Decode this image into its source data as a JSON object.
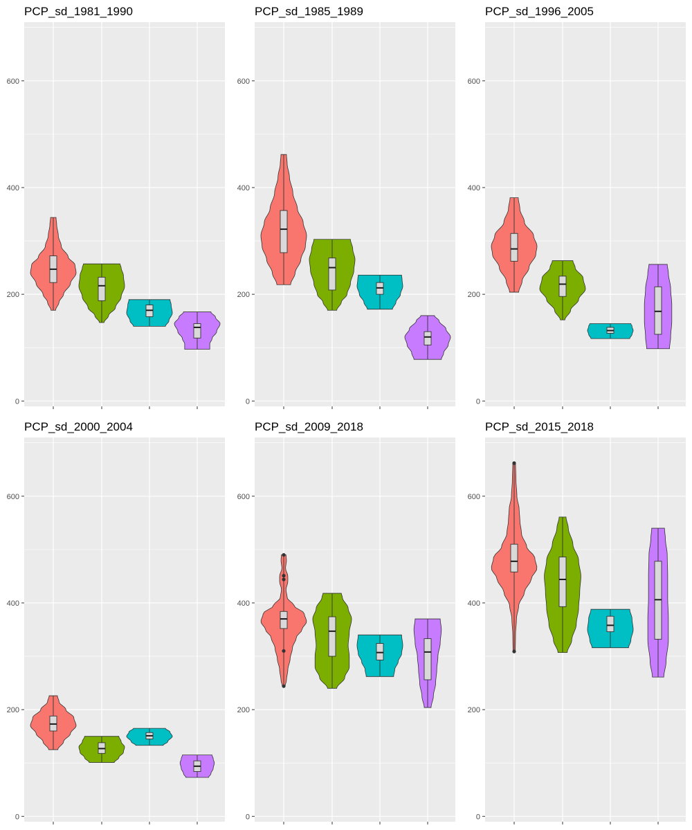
{
  "figure": {
    "background": "#ffffff",
    "panel_background": "#ebebeb",
    "grid_color": "#ffffff",
    "box_fill": "#d9d9d9",
    "outline_color": "#333333",
    "category_colors": [
      "#f8766d",
      "#7cae00",
      "#00bfc4",
      "#c77cff"
    ]
  },
  "chart_data": [
    {
      "type": "violin",
      "title": "PCP_sd_1981_1990",
      "xlabel": "",
      "ylabel": "",
      "ylim": [
        -10,
        710
      ],
      "yticks": [
        0,
        200,
        400,
        600
      ],
      "grid": true,
      "series": [
        {
          "min": 170,
          "q1": 222,
          "median": 247,
          "q3": 272,
          "max": 344,
          "outliers": [],
          "density": [
            [
              170,
              0.1
            ],
            [
              185,
              0.25
            ],
            [
              200,
              0.45
            ],
            [
              220,
              0.75
            ],
            [
              240,
              1.0
            ],
            [
              255,
              0.95
            ],
            [
              270,
              0.65
            ],
            [
              290,
              0.35
            ],
            [
              310,
              0.22
            ],
            [
              330,
              0.15
            ],
            [
              344,
              0.12
            ]
          ]
        },
        {
          "min": 147,
          "q1": 188,
          "median": 216,
          "q3": 232,
          "max": 257,
          "outliers": [],
          "density": [
            [
              147,
              0.1
            ],
            [
              160,
              0.3
            ],
            [
              175,
              0.6
            ],
            [
              195,
              0.85
            ],
            [
              215,
              1.0
            ],
            [
              235,
              0.95
            ],
            [
              250,
              0.85
            ],
            [
              257,
              0.8
            ]
          ]
        },
        {
          "min": 140,
          "q1": 158,
          "median": 170,
          "q3": 180,
          "max": 190,
          "outliers": [],
          "density": [
            [
              140,
              0.7
            ],
            [
              150,
              0.85
            ],
            [
              165,
              1.0
            ],
            [
              180,
              0.95
            ],
            [
              190,
              0.9
            ]
          ]
        },
        {
          "min": 97,
          "q1": 118,
          "median": 138,
          "q3": 145,
          "max": 167,
          "outliers": [],
          "density": [
            [
              97,
              0.55
            ],
            [
              107,
              0.55
            ],
            [
              117,
              0.65
            ],
            [
              130,
              0.85
            ],
            [
              145,
              1.0
            ],
            [
              157,
              0.8
            ],
            [
              167,
              0.6
            ]
          ]
        }
      ]
    },
    {
      "type": "violin",
      "title": "PCP_sd_1985_1989",
      "xlabel": "",
      "ylabel": "",
      "ylim": [
        -10,
        710
      ],
      "yticks": [
        0,
        200,
        400,
        600
      ],
      "grid": true,
      "series": [
        {
          "min": 218,
          "q1": 278,
          "median": 322,
          "q3": 357,
          "max": 462,
          "outliers": [],
          "density": [
            [
              218,
              0.3
            ],
            [
              240,
              0.5
            ],
            [
              265,
              0.75
            ],
            [
              290,
              0.95
            ],
            [
              310,
              1.0
            ],
            [
              335,
              0.85
            ],
            [
              360,
              0.6
            ],
            [
              390,
              0.4
            ],
            [
              420,
              0.25
            ],
            [
              445,
              0.15
            ],
            [
              462,
              0.12
            ]
          ]
        },
        {
          "min": 170,
          "q1": 208,
          "median": 250,
          "q3": 268,
          "max": 303,
          "outliers": [],
          "density": [
            [
              170,
              0.2
            ],
            [
              185,
              0.4
            ],
            [
              200,
              0.65
            ],
            [
              220,
              0.8
            ],
            [
              245,
              0.95
            ],
            [
              265,
              1.0
            ],
            [
              285,
              0.9
            ],
            [
              303,
              0.8
            ]
          ]
        },
        {
          "min": 172,
          "q1": 200,
          "median": 212,
          "q3": 222,
          "max": 236,
          "outliers": [],
          "density": [
            [
              172,
              0.55
            ],
            [
              185,
              0.7
            ],
            [
              200,
              0.9
            ],
            [
              215,
              1.0
            ],
            [
              228,
              0.97
            ],
            [
              236,
              0.95
            ]
          ]
        },
        {
          "min": 78,
          "q1": 105,
          "median": 120,
          "q3": 130,
          "max": 160,
          "outliers": [],
          "density": [
            [
              78,
              0.6
            ],
            [
              90,
              0.7
            ],
            [
              105,
              0.9
            ],
            [
              120,
              1.0
            ],
            [
              135,
              0.8
            ],
            [
              150,
              0.5
            ],
            [
              160,
              0.3
            ]
          ]
        }
      ]
    },
    {
      "type": "violin",
      "title": "PCP_sd_1996_2005",
      "xlabel": "",
      "ylabel": "",
      "ylim": [
        -10,
        710
      ],
      "yticks": [
        0,
        200,
        400,
        600
      ],
      "grid": true,
      "series": [
        {
          "min": 204,
          "q1": 262,
          "median": 285,
          "q3": 314,
          "max": 381,
          "outliers": [],
          "density": [
            [
              204,
              0.2
            ],
            [
              225,
              0.35
            ],
            [
              250,
              0.65
            ],
            [
              275,
              0.95
            ],
            [
              290,
              1.0
            ],
            [
              310,
              0.85
            ],
            [
              335,
              0.45
            ],
            [
              360,
              0.25
            ],
            [
              381,
              0.18
            ]
          ]
        },
        {
          "min": 152,
          "q1": 196,
          "median": 219,
          "q3": 234,
          "max": 263,
          "outliers": [],
          "density": [
            [
              152,
              0.1
            ],
            [
              170,
              0.35
            ],
            [
              190,
              0.7
            ],
            [
              210,
              1.0
            ],
            [
              230,
              0.9
            ],
            [
              250,
              0.55
            ],
            [
              263,
              0.45
            ]
          ]
        },
        {
          "min": 117,
          "q1": 127,
          "median": 132,
          "q3": 138,
          "max": 145,
          "outliers": [],
          "density": [
            [
              117,
              0.85
            ],
            [
              125,
              0.95
            ],
            [
              132,
              1.0
            ],
            [
              140,
              0.95
            ],
            [
              145,
              0.9
            ]
          ]
        },
        {
          "min": 98,
          "q1": 125,
          "median": 168,
          "q3": 214,
          "max": 256,
          "outliers": [],
          "density": [
            [
              98,
              0.5
            ],
            [
              120,
              0.55
            ],
            [
              150,
              0.6
            ],
            [
              180,
              0.6
            ],
            [
              210,
              0.55
            ],
            [
              240,
              0.45
            ],
            [
              256,
              0.4
            ]
          ]
        }
      ]
    },
    {
      "type": "violin",
      "title": "PCP_sd_2000_2004",
      "xlabel": "",
      "ylabel": "",
      "ylim": [
        -10,
        710
      ],
      "yticks": [
        0,
        200,
        400,
        600
      ],
      "grid": true,
      "series": [
        {
          "min": 125,
          "q1": 160,
          "median": 173,
          "q3": 188,
          "max": 226,
          "outliers": [],
          "density": [
            [
              125,
              0.2
            ],
            [
              140,
              0.45
            ],
            [
              155,
              0.75
            ],
            [
              170,
              1.0
            ],
            [
              185,
              0.9
            ],
            [
              200,
              0.55
            ],
            [
              215,
              0.25
            ],
            [
              226,
              0.18
            ]
          ]
        },
        {
          "min": 101,
          "q1": 118,
          "median": 127,
          "q3": 138,
          "max": 150,
          "outliers": [],
          "density": [
            [
              101,
              0.55
            ],
            [
              110,
              0.75
            ],
            [
              120,
              0.95
            ],
            [
              130,
              1.0
            ],
            [
              140,
              0.85
            ],
            [
              150,
              0.75
            ]
          ]
        },
        {
          "min": 133,
          "q1": 145,
          "median": 151,
          "q3": 157,
          "max": 165,
          "outliers": [],
          "density": [
            [
              133,
              0.6
            ],
            [
              140,
              0.8
            ],
            [
              150,
              1.0
            ],
            [
              158,
              0.9
            ],
            [
              165,
              0.7
            ]
          ]
        },
        {
          "min": 73,
          "q1": 84,
          "median": 94,
          "q3": 104,
          "max": 115,
          "outliers": [],
          "density": [
            [
              73,
              0.5
            ],
            [
              80,
              0.6
            ],
            [
              90,
              0.7
            ],
            [
              100,
              0.75
            ],
            [
              108,
              0.7
            ],
            [
              115,
              0.65
            ]
          ]
        }
      ]
    },
    {
      "type": "violin",
      "title": "PCP_sd_2009_2018",
      "xlabel": "",
      "ylabel": "",
      "ylim": [
        -10,
        710
      ],
      "yticks": [
        0,
        200,
        400,
        600
      ],
      "grid": true,
      "series": [
        {
          "min": 244,
          "q1": 352,
          "median": 370,
          "q3": 384,
          "max": 490,
          "outliers": [
            490,
            451,
            444,
            310,
            244
          ],
          "density": [
            [
              244,
              0.06
            ],
            [
              255,
              0.12
            ],
            [
              275,
              0.18
            ],
            [
              295,
              0.28
            ],
            [
              315,
              0.38
            ],
            [
              335,
              0.55
            ],
            [
              350,
              0.8
            ],
            [
              365,
              1.0
            ],
            [
              380,
              0.9
            ],
            [
              395,
              0.45
            ],
            [
              410,
              0.15
            ],
            [
              425,
              0.1
            ],
            [
              440,
              0.18
            ],
            [
              450,
              0.18
            ],
            [
              465,
              0.08
            ],
            [
              480,
              0.12
            ],
            [
              490,
              0.1
            ]
          ]
        },
        {
          "min": 240,
          "q1": 300,
          "median": 347,
          "q3": 374,
          "max": 418,
          "outliers": [],
          "density": [
            [
              240,
              0.2
            ],
            [
              260,
              0.55
            ],
            [
              280,
              0.75
            ],
            [
              300,
              0.75
            ],
            [
              320,
              0.7
            ],
            [
              345,
              0.75
            ],
            [
              370,
              0.85
            ],
            [
              390,
              0.7
            ],
            [
              410,
              0.45
            ],
            [
              418,
              0.4
            ]
          ]
        },
        {
          "min": 262,
          "q1": 293,
          "median": 307,
          "q3": 324,
          "max": 340,
          "outliers": [],
          "density": [
            [
              262,
              0.6
            ],
            [
              275,
              0.65
            ],
            [
              290,
              0.8
            ],
            [
              305,
              0.95
            ],
            [
              320,
              1.0
            ],
            [
              340,
              0.95
            ]
          ]
        },
        {
          "min": 204,
          "q1": 256,
          "median": 308,
          "q3": 333,
          "max": 370,
          "outliers": [],
          "density": [
            [
              204,
              0.15
            ],
            [
              225,
              0.25
            ],
            [
              250,
              0.35
            ],
            [
              275,
              0.4
            ],
            [
              300,
              0.45
            ],
            [
              325,
              0.55
            ],
            [
              350,
              0.6
            ],
            [
              370,
              0.55
            ]
          ]
        }
      ]
    },
    {
      "type": "violin",
      "title": "PCP_sd_2015_2018",
      "xlabel": "",
      "ylabel": "",
      "ylim": [
        -10,
        710
      ],
      "yticks": [
        0,
        200,
        400,
        600
      ],
      "grid": true,
      "series": [
        {
          "min": 309,
          "q1": 458,
          "median": 478,
          "q3": 510,
          "max": 662,
          "outliers": [
            662,
            309
          ],
          "density": [
            [
              309,
              0.05
            ],
            [
              340,
              0.06
            ],
            [
              370,
              0.1
            ],
            [
              395,
              0.2
            ],
            [
              420,
              0.45
            ],
            [
              445,
              0.75
            ],
            [
              465,
              1.0
            ],
            [
              485,
              0.9
            ],
            [
              505,
              0.55
            ],
            [
              530,
              0.32
            ],
            [
              555,
              0.25
            ],
            [
              575,
              0.22
            ],
            [
              600,
              0.12
            ],
            [
              630,
              0.08
            ],
            [
              662,
              0.06
            ]
          ]
        },
        {
          "min": 307,
          "q1": 393,
          "median": 444,
          "q3": 486,
          "max": 561,
          "outliers": [],
          "density": [
            [
              307,
              0.2
            ],
            [
              330,
              0.4
            ],
            [
              360,
              0.6
            ],
            [
              390,
              0.7
            ],
            [
              420,
              0.75
            ],
            [
              450,
              0.8
            ],
            [
              480,
              0.7
            ],
            [
              510,
              0.45
            ],
            [
              540,
              0.25
            ],
            [
              561,
              0.15
            ]
          ]
        },
        {
          "min": 316,
          "q1": 346,
          "median": 358,
          "q3": 375,
          "max": 388,
          "outliers": [],
          "density": [
            [
              316,
              0.8
            ],
            [
              330,
              0.9
            ],
            [
              350,
              1.0
            ],
            [
              370,
              0.95
            ],
            [
              388,
              0.85
            ]
          ]
        },
        {
          "min": 261,
          "q1": 332,
          "median": 406,
          "q3": 478,
          "max": 540,
          "outliers": [],
          "density": [
            [
              261,
              0.25
            ],
            [
              290,
              0.35
            ],
            [
              330,
              0.45
            ],
            [
              370,
              0.45
            ],
            [
              410,
              0.42
            ],
            [
              450,
              0.42
            ],
            [
              490,
              0.4
            ],
            [
              520,
              0.32
            ],
            [
              540,
              0.28
            ]
          ]
        }
      ]
    }
  ]
}
